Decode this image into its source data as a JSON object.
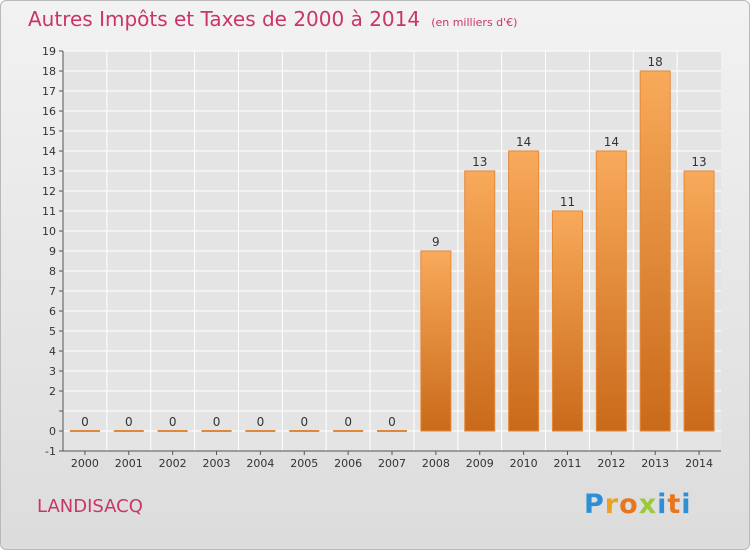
{
  "title": "Autres Impôts et Taxes de 2000 à 2014",
  "subtitle": "(en milliers d'€)",
  "place": "LANDISACQ",
  "brand": "Proxiti",
  "colors": {
    "title": "#c9356b",
    "bar_light": "#f8aa5a",
    "bar_dark": "#c96a1a",
    "axis": "#555555",
    "grid": "#ffffff",
    "label": "#333333"
  },
  "chart_data": {
    "type": "bar",
    "title": "Autres Impôts et Taxes de 2000 à 2014",
    "subtitle": "(en milliers d'€)",
    "categories": [
      "2000",
      "2001",
      "2002",
      "2003",
      "2004",
      "2005",
      "2006",
      "2007",
      "2008",
      "2009",
      "2010",
      "2011",
      "2012",
      "2013",
      "2014"
    ],
    "values": [
      0,
      0,
      0,
      0,
      0,
      0,
      0,
      0,
      9,
      13,
      14,
      11,
      14,
      18,
      13
    ],
    "data_labels": [
      "0",
      "0",
      "0",
      "0",
      "0",
      "0",
      "0",
      "0",
      "9",
      "13",
      "14",
      "11",
      "14",
      "18",
      "13"
    ],
    "ylim": [
      -1,
      19
    ],
    "yticks": [
      -1,
      0,
      1,
      2,
      3,
      4,
      5,
      6,
      7,
      8,
      9,
      10,
      11,
      12,
      13,
      14,
      15,
      16,
      17,
      18,
      19
    ],
    "ytick_labels": [
      "-1",
      "0",
      "",
      "2",
      "3",
      "4",
      "5",
      "6",
      "7",
      "8",
      "9",
      "10",
      "11",
      "12",
      "13",
      "14",
      "15",
      "16",
      "17",
      "18",
      "19"
    ],
    "grid": true,
    "legend": "none"
  }
}
